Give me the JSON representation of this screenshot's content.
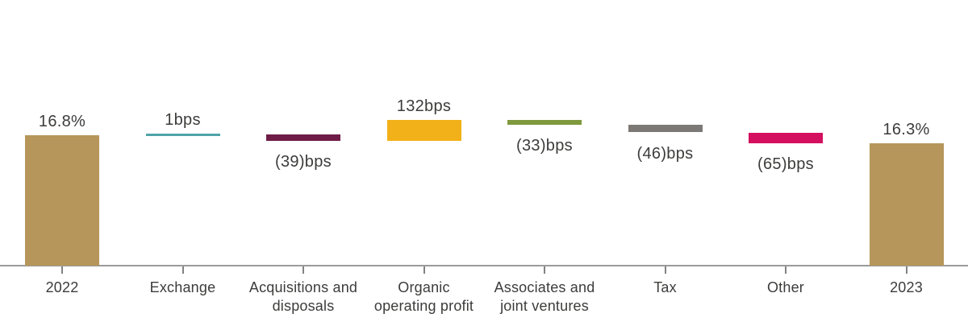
{
  "chart_data": {
    "type": "bar",
    "subtype": "waterfall",
    "title": "",
    "xlabel": "",
    "ylabel": "",
    "unit": "bps",
    "start_total": {
      "label": "2022",
      "value_label": "16.8%",
      "value_bps": 1680
    },
    "end_total": {
      "label": "2023",
      "value_label": "16.3%",
      "value_bps": 1630
    },
    "columns": [
      {
        "label": "2022",
        "label_lines": [
          "2022"
        ],
        "value_label": "16.8%",
        "kind": "total",
        "value_bps": 1680,
        "delta_bps": null,
        "color": "#B6965A",
        "value_label_position": "above"
      },
      {
        "label": "Exchange",
        "label_lines": [
          "Exchange"
        ],
        "value_label": "1bps",
        "kind": "delta",
        "value_bps": null,
        "delta_bps": 1,
        "color": "#4FA3A8",
        "value_label_position": "above"
      },
      {
        "label": "Acquisitions and disposals",
        "label_lines": [
          "Acquisitions and",
          "disposals"
        ],
        "value_label": "(39)bps",
        "kind": "delta",
        "value_bps": null,
        "delta_bps": -39,
        "color": "#6F1D46",
        "value_label_position": "below"
      },
      {
        "label": "Organic operating profit",
        "label_lines": [
          "Organic",
          "operating profit"
        ],
        "value_label": "132bps",
        "kind": "delta",
        "value_bps": null,
        "delta_bps": 132,
        "color": "#F2B118",
        "value_label_position": "above"
      },
      {
        "label": "Associates and joint ventures",
        "label_lines": [
          "Associates and",
          "joint ventures"
        ],
        "value_label": "(33)bps",
        "kind": "delta",
        "value_bps": null,
        "delta_bps": -33,
        "color": "#7F993D",
        "value_label_position": "below"
      },
      {
        "label": "Tax",
        "label_lines": [
          "Tax"
        ],
        "value_label": "(46)bps",
        "kind": "delta",
        "value_bps": null,
        "delta_bps": -46,
        "color": "#7C7875",
        "value_label_position": "below"
      },
      {
        "label": "Other",
        "label_lines": [
          "Other"
        ],
        "value_label": "(65)bps",
        "kind": "delta",
        "value_bps": null,
        "delta_bps": -65,
        "color": "#D50F5F",
        "value_label_position": "below"
      },
      {
        "label": "2023",
        "label_lines": [
          "2023"
        ],
        "value_label": "16.3%",
        "kind": "total",
        "value_bps": 1630,
        "delta_bps": null,
        "color": "#B6965A",
        "value_label_position": "above"
      }
    ],
    "colors": {
      "total_bar": "#B6965A",
      "axis_line": "#9B9B9B",
      "axis_tick": "#828282",
      "text": "#3C3C3B"
    },
    "layout_hints": {
      "legend": "none",
      "grid": "off",
      "baseline": "non-zero (broken scale for totals)"
    }
  }
}
